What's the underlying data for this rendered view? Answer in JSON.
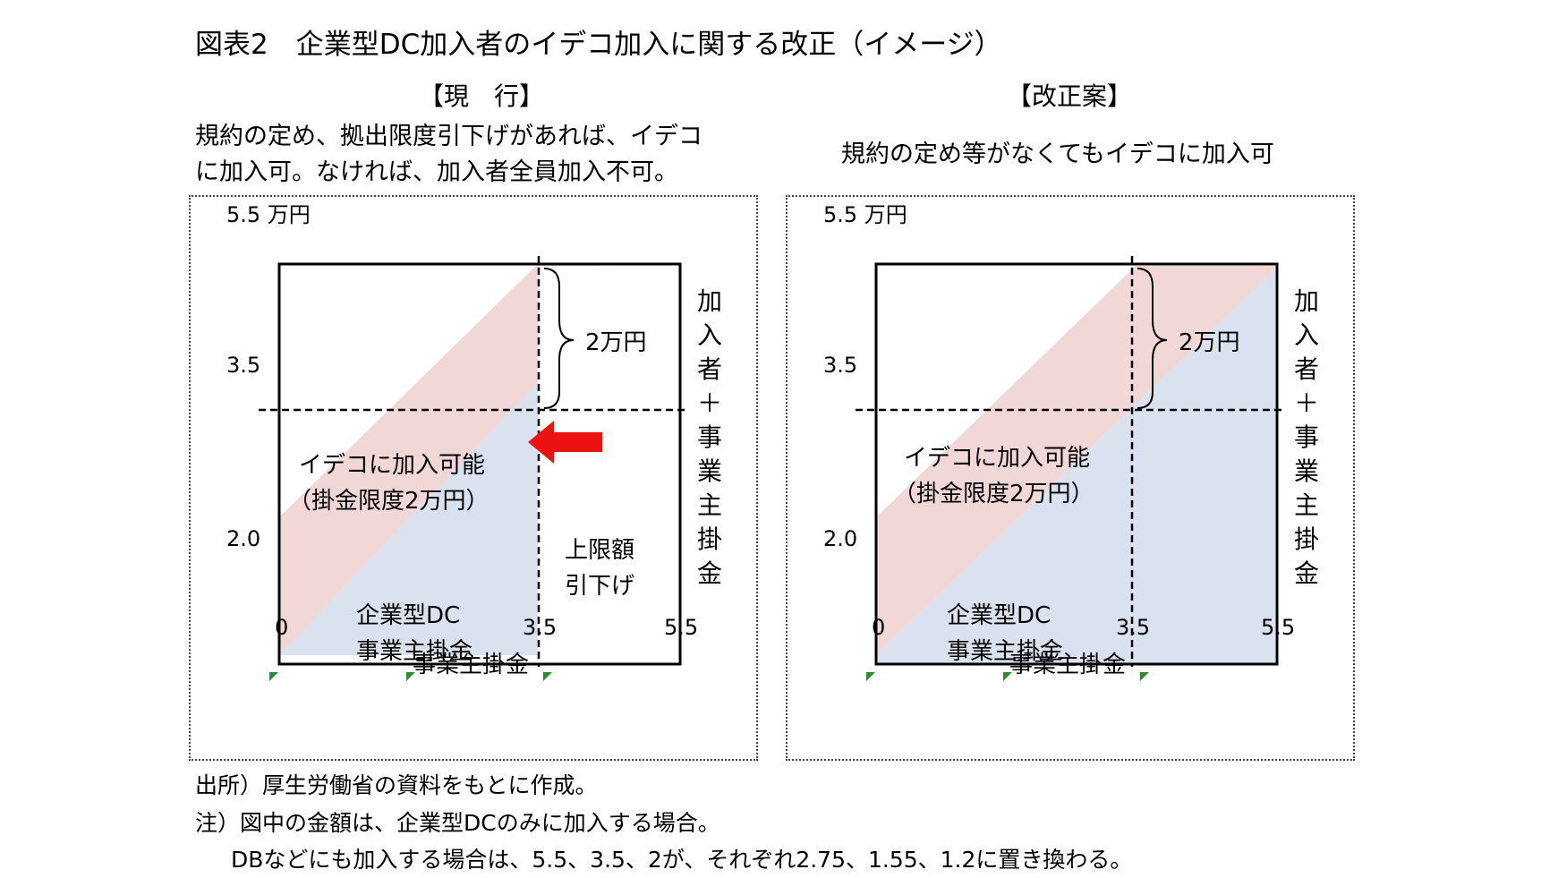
{
  "title": "図表2　企業型DC加入者のイデコ加入に関する改正（イメージ）",
  "left": {
    "header": "【現　行】",
    "desc_line1": "規約の定め、拠出限度引下げがあれば、イデコ",
    "desc_line2": "に加入可。なければ、加入者全員加入不可。",
    "y_top_label": "5.5 万円",
    "y_mid_label": "3.5",
    "y_low_label": "2.0",
    "x_tick_0": "0",
    "x_tick_mid": "3.5",
    "x_tick_max": "5.5",
    "x_axis_label": "事業主掛金",
    "brace_label": "2万円",
    "ideco_line1": "イデコに加入可能",
    "ideco_line2": "（掛金限度2万円）",
    "dc_line1": "企業型DC",
    "dc_line2": "事業主掛金",
    "cap_line1": "上限額",
    "cap_line2": "引下げ",
    "right_axis_label": "加入者＋事業主掛金"
  },
  "right": {
    "header": "【改正案】",
    "desc_line1": "規約の定め等がなくてもイデコに加入可",
    "y_top_label": "5.5 万円",
    "y_mid_label": "3.5",
    "y_low_label": "2.0",
    "x_tick_0": "0",
    "x_tick_mid": "3.5",
    "x_tick_max": "5.5",
    "x_axis_label": "事業主掛金",
    "brace_label": "2万円",
    "ideco_line1": "イデコに加入可能",
    "ideco_line2": "（掛金限度2万円）",
    "dc_line1": "企業型DC",
    "dc_line2": "事業主掛金",
    "right_axis_label": "加入者＋事業主掛金"
  },
  "notes": {
    "source": "出所）厚生労働省の資料をもとに作成。",
    "note1": "注）図中の金額は、企業型DCのみに加入する場合。",
    "note2": "DBなどにも加入する場合は、5.5、3.5、2が、それぞれ2.75、1.55、1.2に置き換わる。"
  },
  "colors": {
    "pink_region": "#f2d7d7",
    "blue_region": "#d9e2ee",
    "arrow": "#ee1111",
    "tick_marker": "#2e8b2e"
  }
}
